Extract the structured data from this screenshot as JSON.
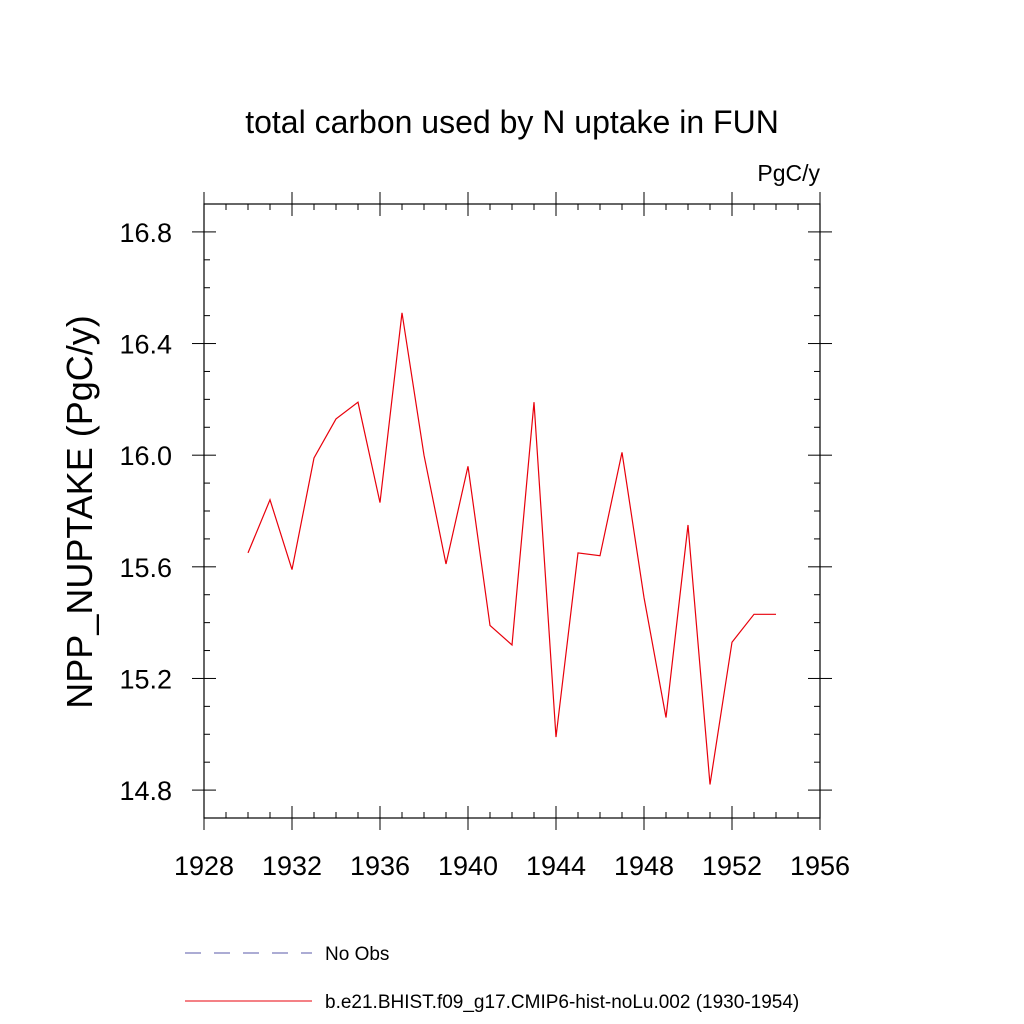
{
  "chart_data": {
    "type": "line",
    "title": "total carbon used by N uptake in FUN",
    "units_label": "PgC/y",
    "ylabel": "NPP_NUPTAKE  (PgC/y)",
    "xlabel": "",
    "xlim": [
      1928,
      1956
    ],
    "ylim": [
      14.7,
      16.9
    ],
    "x_ticks": [
      1928,
      1932,
      1936,
      1940,
      1944,
      1948,
      1952,
      1956
    ],
    "y_ticks": [
      14.8,
      15.2,
      15.6,
      16.0,
      16.4,
      16.8
    ],
    "x_tick_labels": [
      "1928",
      "1932",
      "1936",
      "1940",
      "1944",
      "1948",
      "1952",
      "1956"
    ],
    "y_tick_labels": [
      "14.8",
      "15.2",
      "15.6",
      "16.0",
      "16.4",
      "16.8"
    ],
    "grid": false,
    "legend_position": "bottom",
    "series": [
      {
        "name": "b.e21.BHIST.f09_g17.CMIP6-hist-noLu.002 (1930-1954)",
        "color": "#e8000b",
        "style": "solid",
        "x": [
          1930,
          1931,
          1932,
          1933,
          1934,
          1935,
          1936,
          1937,
          1938,
          1939,
          1940,
          1941,
          1942,
          1943,
          1944,
          1945,
          1946,
          1947,
          1948,
          1949,
          1950,
          1951,
          1952,
          1953,
          1954
        ],
        "y": [
          15.65,
          15.84,
          15.59,
          15.99,
          16.13,
          16.19,
          15.83,
          16.51,
          16.0,
          15.61,
          15.96,
          15.39,
          15.32,
          16.19,
          14.99,
          15.65,
          15.64,
          16.01,
          15.49,
          15.06,
          15.75,
          14.82,
          15.33,
          15.43,
          15.43
        ]
      }
    ],
    "legend": [
      {
        "label": "No Obs",
        "color": "#5a5aa8",
        "style": "dashed"
      },
      {
        "label": "b.e21.BHIST.f09_g17.CMIP6-hist-noLu.002 (1930-1954)",
        "color": "#e8000b",
        "style": "solid"
      }
    ]
  }
}
